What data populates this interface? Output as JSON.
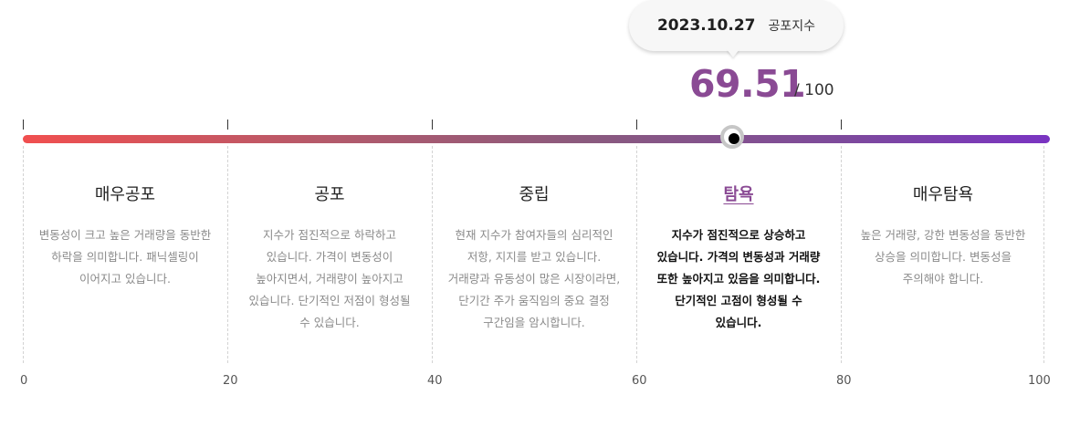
{
  "tooltip": {
    "date": "2023.10.27",
    "label": "공포지수"
  },
  "score": {
    "value": "69.51",
    "max_text": "/ 100",
    "value_numeric": 69.51,
    "max_numeric": 100
  },
  "scale": {
    "min": 0,
    "max": 100,
    "gradient_start_color": "#f14f4f",
    "gradient_end_color": "#7a34c2",
    "accent_color": "#8a4a94"
  },
  "zones": [
    {
      "title": "매우공포",
      "description": "변동성이 크고 높은 거래량을 동반한 하락을 의미합니다. 패닉셀링이 이어지고 있습니다.",
      "active": false
    },
    {
      "title": "공포",
      "description": "지수가 점진적으로 하락하고 있습니다. 가격이 변동성이 높아지면서, 거래량이 높아지고 있습니다. 단기적인 저점이 형성될 수 있습니다.",
      "active": false
    },
    {
      "title": "중립",
      "description": "현재 지수가 참여자들의 심리적인 저항, 지지를 받고 있습니다. 거래량과 유동성이 많은 시장이라면, 단기간 주가 움직임의 중요 결정 구간임을 암시합니다.",
      "active": false
    },
    {
      "title": "탐욕",
      "description": "지수가 점진적으로 상승하고 있습니다. 가격의 변동성과 거래량 또한 높아지고 있음을 의미합니다. 단기적인 고점이 형성될 수 있습니다.",
      "active": true
    },
    {
      "title": "매우탐욕",
      "description": "높은 거래량, 강한 변동성을 동반한 상승을 의미합니다. 변동성을 주의해야 합니다.",
      "active": false
    }
  ],
  "axis_labels": [
    "0",
    "20",
    "40",
    "60",
    "80",
    "100"
  ]
}
